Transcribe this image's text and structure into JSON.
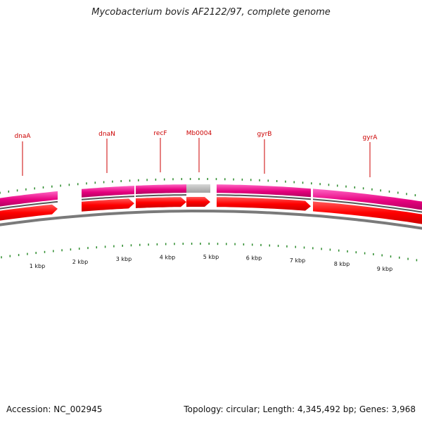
{
  "title": "Mycobacterium bovis AF2122/97, complete genome",
  "accession": "Accession: NC_002945",
  "summary": "Topology: circular; Length: 4,345,492 bp; Genes: 3,968",
  "colors": {
    "cds_top": "#e6007e",
    "cds_top_highlight": "#ff66c4",
    "cds_gray": "#b8b8b8",
    "arrow": "#ff0000",
    "arrow_dark": "#cc0000",
    "backbone": "#7a7a7a",
    "tick": "#2a8a2a",
    "label": "#cc0000"
  },
  "chart_data": {
    "type": "genome-map",
    "visible_range_kbp": [
      0,
      9.7
    ],
    "genes": [
      {
        "name": "dnaA",
        "start_kbp": 0.0,
        "end_kbp": 1.3
      },
      {
        "name": "dnaN",
        "start_kbp": 1.9,
        "end_kbp": 3.1
      },
      {
        "name": "recF",
        "start_kbp": 3.1,
        "end_kbp": 4.3
      },
      {
        "name": "Mb0004",
        "start_kbp": 4.3,
        "end_kbp": 4.9
      },
      {
        "name": "gyrB",
        "start_kbp": 5.1,
        "end_kbp": 7.3
      },
      {
        "name": "gyrA",
        "start_kbp": 7.3,
        "end_kbp": 9.7
      }
    ],
    "gray_segments": [
      {
        "start_kbp": 4.3,
        "end_kbp": 4.9
      }
    ],
    "label_positions_kbp": [
      {
        "name": "dnaA",
        "kbp": 0.52
      },
      {
        "name": "dnaN",
        "kbp": 2.47
      },
      {
        "name": "recF",
        "kbp": 3.7
      },
      {
        "name": "Mb0004",
        "kbp": 4.55
      },
      {
        "name": "gyrB",
        "kbp": 6.1
      },
      {
        "name": "gyrA",
        "kbp": 8.5
      }
    ],
    "axis_ticks": [
      {
        "kbp": 1,
        "label": "1 kbp"
      },
      {
        "kbp": 2,
        "label": "2 kbp"
      },
      {
        "kbp": 3,
        "label": "3 kbp"
      },
      {
        "kbp": 4,
        "label": "4 kbp"
      },
      {
        "kbp": 5,
        "label": "5 kbp"
      },
      {
        "kbp": 6,
        "label": "6 kbp"
      },
      {
        "kbp": 7,
        "label": "7 kbp"
      },
      {
        "kbp": 8,
        "label": "8 kbp"
      },
      {
        "kbp": 9,
        "label": "9 kbp"
      }
    ]
  }
}
